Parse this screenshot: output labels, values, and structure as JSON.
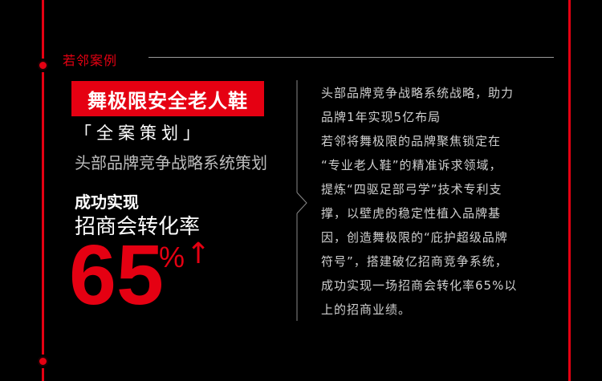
{
  "section": {
    "label": "若邻案例"
  },
  "case": {
    "title": "舞极限安全老人鞋",
    "quote_title": "「全案策划」",
    "subtitle": "头部品牌竞争战略系统策划",
    "achieve_label": "成功实现",
    "metric_label": "招商会转化率",
    "metric_value": "65",
    "metric_unit": "%",
    "metric_arrow": "↑"
  },
  "description": {
    "lines": [
      "头部品牌竞争战略系统战略，助力",
      "品牌1年实现5亿布局",
      "若邻将舞极限的品牌聚焦锁定在",
      "“专业老人鞋”的精准诉求领域，",
      "提炼“四驱足部弓学”技术专利支",
      "撑，以壁虎的稳定性植入品牌基",
      "因，创造舞极限的“庇护超级品牌",
      "符号”，搭建破亿招商竞争系统，",
      "成功实现一场招商会转化率65%以",
      "上的招商业绩。"
    ]
  },
  "colors": {
    "accent": "#e50012",
    "background": "#000000",
    "muted_text": "#cfcfcf"
  }
}
